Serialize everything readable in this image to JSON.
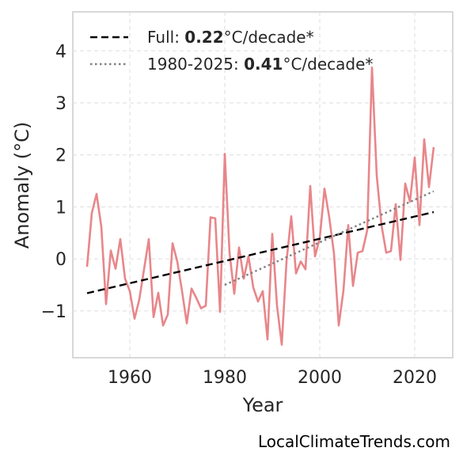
{
  "chart_data": {
    "type": "line",
    "xlabel": "Year",
    "ylabel": "Anomaly (°C)",
    "xlim": [
      1948,
      2028
    ],
    "ylim": [
      -1.9,
      4.75
    ],
    "xticks": [
      1960,
      1980,
      2000,
      2020
    ],
    "yticks": [
      -1,
      0,
      1,
      2,
      3,
      4
    ],
    "ytick_labels": [
      "−1",
      "0",
      "1",
      "2",
      "3",
      "4"
    ],
    "grid": true,
    "legend_placement": "top-left",
    "series": [
      {
        "color": "#e8868a",
        "style": "solid",
        "x": [
          1951,
          1952,
          1953,
          1954,
          1955,
          1956,
          1957,
          1958,
          1959,
          1960,
          1961,
          1962,
          1963,
          1964,
          1965,
          1966,
          1967,
          1968,
          1969,
          1970,
          1971,
          1972,
          1973,
          1974,
          1975,
          1976,
          1977,
          1978,
          1979,
          1980,
          1981,
          1982,
          1983,
          1984,
          1985,
          1986,
          1987,
          1988,
          1989,
          1990,
          1991,
          1992,
          1993,
          1994,
          1995,
          1996,
          1997,
          1998,
          1999,
          2000,
          2001,
          2002,
          2003,
          2004,
          2005,
          2006,
          2007,
          2008,
          2009,
          2010,
          2011,
          2012,
          2013,
          2014,
          2015,
          2016,
          2017,
          2018,
          2019,
          2020,
          2021,
          2022,
          2023,
          2024
        ],
        "y": [
          -0.15,
          0.88,
          1.25,
          0.62,
          -0.87,
          0.16,
          -0.19,
          0.38,
          -0.38,
          -0.62,
          -1.15,
          -0.78,
          -0.2,
          0.38,
          -1.12,
          -0.65,
          -1.28,
          -1.07,
          0.3,
          -0.05,
          -0.62,
          -1.24,
          -0.57,
          -0.75,
          -0.95,
          -0.9,
          0.8,
          0.78,
          -1.02,
          2.02,
          0.12,
          -0.67,
          0.22,
          -0.38,
          0.05,
          -0.55,
          -0.82,
          -0.62,
          -1.55,
          0.48,
          -0.9,
          -1.65,
          -0.05,
          0.82,
          -0.28,
          -0.05,
          -0.2,
          1.4,
          0.05,
          0.4,
          1.35,
          0.8,
          0.1,
          -1.28,
          -0.6,
          0.65,
          -0.52,
          0.12,
          0.15,
          0.55,
          3.68,
          1.6,
          0.65,
          0.12,
          0.15,
          1.05,
          -0.02,
          1.45,
          1.1,
          1.95,
          0.65,
          2.3,
          1.38,
          2.15
        ]
      },
      {
        "color": "#000000",
        "style": "dashed",
        "x": [
          1951,
          2024
        ],
        "y": [
          -0.66,
          0.9
        ]
      },
      {
        "color": "#808080",
        "style": "dotted",
        "x": [
          1980,
          2024
        ],
        "y": [
          -0.5,
          1.3
        ]
      }
    ],
    "legend": [
      {
        "prefix": "Full: ",
        "value": "0.22",
        "suffix": "°C/decade*",
        "color": "#000000",
        "style": "dashed"
      },
      {
        "prefix": "1980-2025: ",
        "value": "0.41",
        "suffix": "°C/decade*",
        "color": "#808080",
        "style": "dotted"
      }
    ]
  },
  "attribution": "LocalClimateTrends.com"
}
